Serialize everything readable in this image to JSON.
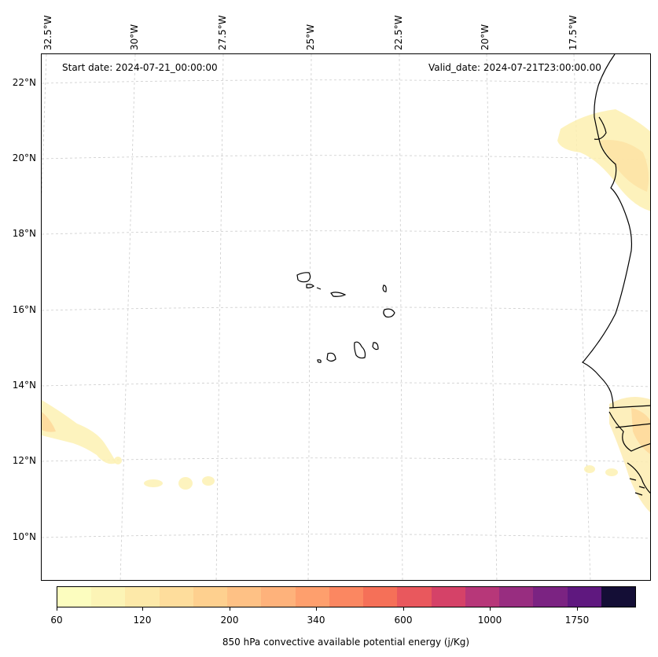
{
  "map": {
    "start_date": "Start date: 2024-07-21_00:00:00",
    "valid_date": "Valid_date: 2024-07-21T23:00:00.00",
    "longitude_labels": [
      "32.5°W",
      "30°W",
      "27.5°W",
      "25°W",
      "22.5°W",
      "20°W",
      "17.5°W"
    ],
    "latitude_labels": [
      "22°N",
      "20°N",
      "18°N",
      "16°N",
      "14°N",
      "12°N",
      "10°N"
    ],
    "coastline_color": "#000000",
    "gridline_color": "#cccccc"
  },
  "colorbar": {
    "label": "850 hPa convective available potential energy (j/Kg)",
    "tick_labels": [
      "60",
      "120",
      "200",
      "340",
      "600",
      "1000",
      "1750"
    ],
    "colors": [
      "#fcfdbf",
      "#fcf4b6",
      "#fde9a9",
      "#fedd9c",
      "#fed08f",
      "#fec185",
      "#feb27b",
      "#fe9f6d",
      "#fb8761",
      "#f57058",
      "#e9585d",
      "#d54268",
      "#b73779",
      "#982d80",
      "#7b2382",
      "#5f187f",
      "#140e36"
    ]
  }
}
